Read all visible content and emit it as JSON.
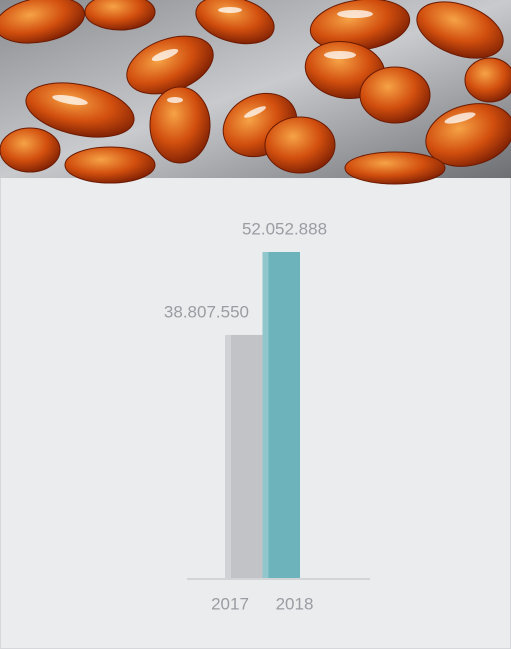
{
  "chart_data": {
    "type": "bar",
    "categories": [
      "2017",
      "2018"
    ],
    "values": [
      38807550,
      52052888
    ],
    "value_labels": [
      "38.807.550",
      "52.052.888"
    ],
    "colors": [
      "#c2c3c7",
      "#6cb3bc"
    ]
  }
}
